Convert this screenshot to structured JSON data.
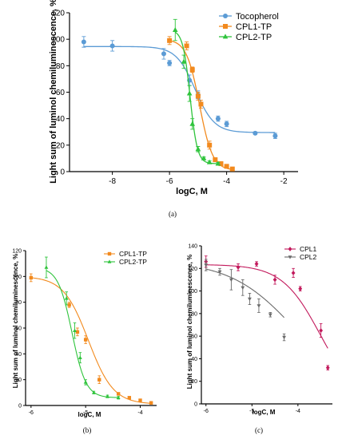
{
  "chart_data": [
    {
      "panel": "(a)",
      "type": "line",
      "xlabel": "logC, M",
      "ylabel": "Light sum of luminol chemiluminescence, %",
      "xlim": [
        -9.5,
        -1.5
      ],
      "ylim": [
        0,
        120
      ],
      "xticks": [
        "-8",
        "-6",
        "-4",
        "-2"
      ],
      "yticks": [
        "0",
        "20",
        "40",
        "60",
        "80",
        "100",
        "120"
      ],
      "legend": "top-right",
      "series": [
        {
          "name": "Tocopherol",
          "marker": "circle",
          "color": "#5b9bd5",
          "x": [
            -9,
            -8,
            -6.2,
            -6,
            -5.3,
            -5,
            -4.3,
            -4,
            -3,
            -2.3
          ],
          "y": [
            98,
            95,
            89,
            82,
            69,
            58,
            40,
            36,
            29,
            27
          ],
          "err": [
            4,
            4,
            4,
            2,
            4,
            3,
            2,
            2,
            1,
            2
          ],
          "curve": {
            "top": 94.5,
            "bottom": 29.5,
            "logEC50": -5.1,
            "hill": 1.3
          }
        },
        {
          "name": "CPL1-TP",
          "marker": "square",
          "color": "#f28a1e",
          "x": [
            -6,
            -5.4,
            -5.2,
            -5,
            -4.9,
            -4.6,
            -4.4,
            -4.2,
            -4.0,
            -3.8
          ],
          "y": [
            99,
            95,
            77,
            57,
            51,
            20,
            9,
            6,
            4,
            2
          ],
          "err": [
            3,
            3,
            2,
            3,
            3,
            3,
            1,
            1,
            1,
            1
          ],
          "curve": {
            "top": 100,
            "bottom": 1,
            "logEC50": -4.95,
            "hill": 1.9
          }
        },
        {
          "name": "CPL2-TP",
          "marker": "triangle",
          "color": "#2fc43c",
          "x": [
            -5.8,
            -5.5,
            -5.3,
            -5.2,
            -5,
            -4.8,
            -4.6,
            -4.3
          ],
          "y": [
            107,
            83,
            59,
            36,
            17,
            10,
            7,
            6
          ],
          "err": [
            8,
            5,
            6,
            4,
            2,
            1,
            1,
            1
          ],
          "curve": {
            "top": 107,
            "bottom": 6,
            "logEC50": -5.28,
            "hill": 3.4
          }
        }
      ]
    },
    {
      "panel": "(b)",
      "type": "line",
      "xlabel": "logC, M",
      "ylabel": "Light sum of luminol chemiluminescence, %",
      "xlim": [
        -6.1,
        -3.7
      ],
      "ylim": [
        0,
        120
      ],
      "xticks": [
        "-6",
        "-5",
        "-4"
      ],
      "yticks": [
        "0",
        "20",
        "40",
        "60",
        "80",
        "100",
        "120"
      ],
      "legend": "top-right",
      "series": [
        {
          "name": "CPL1-TP",
          "marker": "square",
          "color": "#f28a1e",
          "x": [
            -6,
            -5.3,
            -5.15,
            -5,
            -4.75,
            -4.4,
            -4.2,
            -4.0,
            -3.8
          ],
          "y": [
            99,
            78,
            57,
            51,
            20,
            9,
            6,
            4,
            2
          ],
          "err": [
            3,
            2,
            3,
            3,
            3,
            1,
            1,
            1,
            1
          ],
          "curve": {
            "top": 100,
            "bottom": 1,
            "logEC50": -4.95,
            "hill": 1.9
          }
        },
        {
          "name": "CPL2-TP",
          "marker": "triangle",
          "color": "#2fc43c",
          "x": [
            -5.72,
            -5.35,
            -5.2,
            -5.1,
            -5,
            -4.85,
            -4.6,
            -4.4
          ],
          "y": [
            107,
            83,
            58,
            37,
            18,
            10,
            7,
            6
          ],
          "err": [
            8,
            5,
            6,
            4,
            2,
            1,
            1,
            1
          ],
          "curve": {
            "top": 107,
            "bottom": 6,
            "logEC50": -5.25,
            "hill": 3.4
          }
        }
      ]
    },
    {
      "panel": "(c)",
      "type": "line",
      "xlabel": "logC, M",
      "ylabel": "Light sum of luminol chemiluminescence, %",
      "xlim": [
        -6.1,
        -3.25
      ],
      "ylim": [
        0,
        140
      ],
      "xticks": [
        "-6",
        "-5",
        "-4"
      ],
      "yticks": [
        "0",
        "20",
        "40",
        "60",
        "80",
        "100",
        "120",
        "140"
      ],
      "legend": "top-right",
      "series": [
        {
          "name": "CPL1",
          "marker": "diamond",
          "color": "#c2185b",
          "x": [
            -6,
            -5.3,
            -4.9,
            -4.5,
            -4.1,
            -3.95,
            -3.5,
            -3.35
          ],
          "y": [
            126,
            121,
            124,
            110,
            116,
            102,
            65,
            32
          ],
          "err": [
            5,
            3,
            2,
            4,
            4,
            2,
            6,
            2
          ],
          "curve": {
            "top": 123.5,
            "bottom": 0,
            "logEC50": -3.52,
            "hill": 1.05
          }
        },
        {
          "name": "CPL2",
          "marker": "invtriangle",
          "color": "#6b6b6b",
          "x": [
            -6,
            -5.7,
            -5.45,
            -5.2,
            -5.05,
            -4.85,
            -4.6,
            -4.3
          ],
          "y": [
            123,
            117,
            110,
            103,
            93,
            87,
            79,
            59
          ],
          "err": [
            5,
            3,
            9,
            7,
            5,
            6,
            2,
            3
          ],
          "curve": {
            "top": 127,
            "bottom": 0,
            "logEC50": -4.0,
            "hill": 0.6
          }
        }
      ]
    }
  ],
  "captions": [
    "(a)",
    "(b)",
    "(c)"
  ]
}
